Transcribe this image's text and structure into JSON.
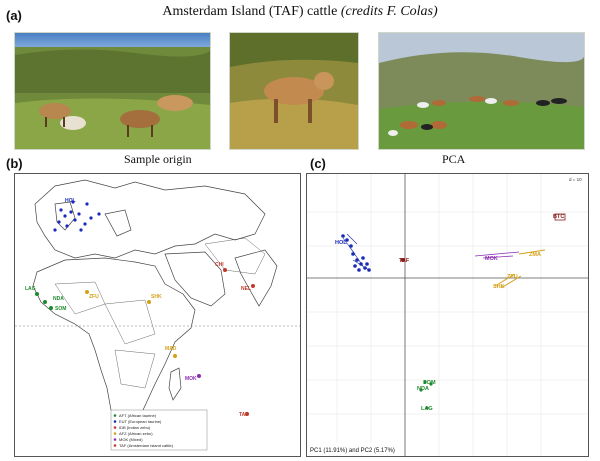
{
  "figure": {
    "title_main": "Amsterdam Island (TAF) cattle",
    "title_credit": "(credits F. Colas)",
    "panel_a": "(a)",
    "panel_b": "(b)",
    "panel_c": "(c)",
    "caption_b": "Sample origin",
    "caption_c": "PCA"
  },
  "map": {
    "region_labels": [
      {
        "text": "HOL",
        "color": "#1a2bb5"
      },
      {
        "text": "CHI",
        "color": "#c0392b"
      },
      {
        "text": "NEL",
        "color": "#c0392b"
      },
      {
        "text": "ZFU",
        "color": "#d4a017"
      },
      {
        "text": "SHK",
        "color": "#d4a017"
      },
      {
        "text": "LAG",
        "color": "#1e8a2e"
      },
      {
        "text": "NDA",
        "color": "#1e8a2e"
      },
      {
        "text": "SOM",
        "color": "#1e8a2e"
      },
      {
        "text": "MAD",
        "color": "#d4a017"
      },
      {
        "text": "MOK",
        "color": "#8e2bb5"
      },
      {
        "text": "TAF",
        "color": "#c0392b"
      }
    ],
    "legend": [
      {
        "text": "AFT (African taurine)",
        "color": "#1e8a2e"
      },
      {
        "text": "EUT (European taurine)",
        "color": "#1a2bb5"
      },
      {
        "text": "IDB (Indian zebu)",
        "color": "#c0392b"
      },
      {
        "text": "AFZ (African zebu)",
        "color": "#d4a017"
      },
      {
        "text": "MOK (Mixed)",
        "color": "#8e2bb5"
      },
      {
        "text": "TAF (Amsterdam Island cattle)",
        "color": "#c0392b"
      }
    ]
  },
  "pca": {
    "scale_label": "d = 10",
    "axis_caption": "PC1 (11.91%) and PC2 (5.17%)",
    "group_labels": [
      {
        "text": "HOL",
        "color": "#1a2bb5"
      },
      {
        "text": "TAF",
        "color": "#8b1a1a"
      },
      {
        "text": "MOK",
        "color": "#8e2bb5"
      },
      {
        "text": "ZMA",
        "color": "#d4a017"
      },
      {
        "text": "ZFU",
        "color": "#d4a017"
      },
      {
        "text": "SHK",
        "color": "#d4a017"
      },
      {
        "text": "BTC",
        "color": "#8b1a1a"
      },
      {
        "text": "SOM",
        "color": "#1e8a2e"
      },
      {
        "text": "NDA",
        "color": "#1e8a2e"
      },
      {
        "text": "LAG",
        "color": "#1e8a2e"
      }
    ]
  }
}
